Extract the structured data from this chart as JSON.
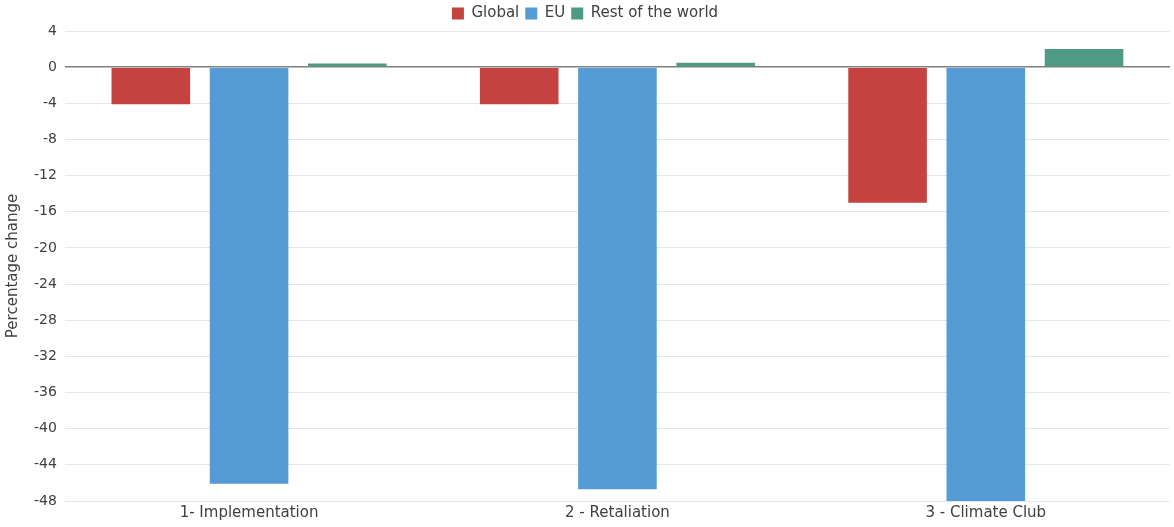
{
  "chart_data": {
    "type": "bar",
    "ylabel": "Percentage change",
    "categories": [
      "1- Implementation",
      "2 - Retaliation",
      "3 - Climate Club"
    ],
    "series": [
      {
        "name": "Global",
        "color": "#c44240",
        "values": [
          -4.1,
          -4.1,
          -15
        ]
      },
      {
        "name": "EU",
        "color": "#559bd6",
        "values": [
          -46.1,
          -46.7,
          -48
        ]
      },
      {
        "name": "Rest of the world",
        "color": "#4e9a85",
        "values": [
          0.4,
          0.5,
          2
        ]
      }
    ],
    "ylim": [
      -48,
      4
    ],
    "yticks": [
      4,
      0,
      -4,
      -8,
      -12,
      -16,
      -20,
      -24,
      -28,
      -32,
      -36,
      -40,
      -44,
      -48
    ],
    "grid": "y",
    "legend": "top"
  }
}
